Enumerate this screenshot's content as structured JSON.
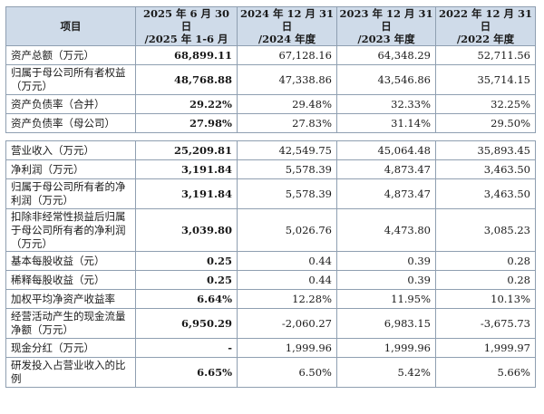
{
  "table": {
    "headers": [
      {
        "line1": "项目",
        "line2": ""
      },
      {
        "line1": "2025 年 6 月 30 日",
        "line2": "/2025 年 1-6 月"
      },
      {
        "line1": "2024 年 12 月 31 日",
        "line2": "/2024 年度"
      },
      {
        "line1": "2023 年 12 月 31 日",
        "line2": "/2023 年度"
      },
      {
        "line1": "2022 年 12 月 31 日",
        "line2": "/2022 年度"
      }
    ],
    "rows": [
      {
        "label": "资产总额（万元）",
        "v": [
          "68,899.11",
          "67,128.16",
          "64,348.29",
          "52,711.56"
        ]
      },
      {
        "label": "归属于母公司所有者权益（万元）",
        "v": [
          "48,768.88",
          "47,338.86",
          "43,546.86",
          "35,714.15"
        ]
      },
      {
        "label": "资产负债率（合并）",
        "v": [
          "29.22%",
          "29.48%",
          "32.33%",
          "32.25%"
        ]
      },
      {
        "label": "资产负债率（母公司）",
        "v": [
          "27.98%",
          "27.83%",
          "31.14%",
          "29.50%"
        ]
      },
      {
        "label": "营业收入（万元）",
        "v": [
          "25,209.81",
          "42,549.75",
          "45,064.48",
          "35,893.45"
        ]
      },
      {
        "label": "净利润（万元）",
        "v": [
          "3,191.84",
          "5,578.39",
          "4,873.47",
          "3,463.50"
        ]
      },
      {
        "label": "归属于母公司所有者的净利润（万元）",
        "v": [
          "3,191.84",
          "5,578.39",
          "4,873.47",
          "3,463.50"
        ]
      },
      {
        "label": "扣除非经常性损益后归属于母公司所有者的净利润（万元）",
        "v": [
          "3,039.80",
          "5,026.76",
          "4,473.80",
          "3,085.23"
        ]
      },
      {
        "label": "基本每股收益（元）",
        "v": [
          "0.25",
          "0.44",
          "0.39",
          "0.28"
        ]
      },
      {
        "label": "稀释每股收益（元）",
        "v": [
          "0.25",
          "0.44",
          "0.39",
          "0.28"
        ]
      },
      {
        "label": "加权平均净资产收益率",
        "v": [
          "6.64%",
          "12.28%",
          "11.95%",
          "10.13%"
        ]
      },
      {
        "label": "经营活动产生的现金流量净额（万元）",
        "v": [
          "6,950.29",
          "-2,060.27",
          "6,983.15",
          "-3,675.73"
        ]
      },
      {
        "label": "现金分红（万元）",
        "v": [
          "-",
          "1,999.96",
          "1,999.96",
          "1,999.97"
        ]
      },
      {
        "label": "研发投入占营业收入的比例",
        "v": [
          "6.65%",
          "6.50%",
          "5.42%",
          "5.66%"
        ]
      }
    ]
  }
}
